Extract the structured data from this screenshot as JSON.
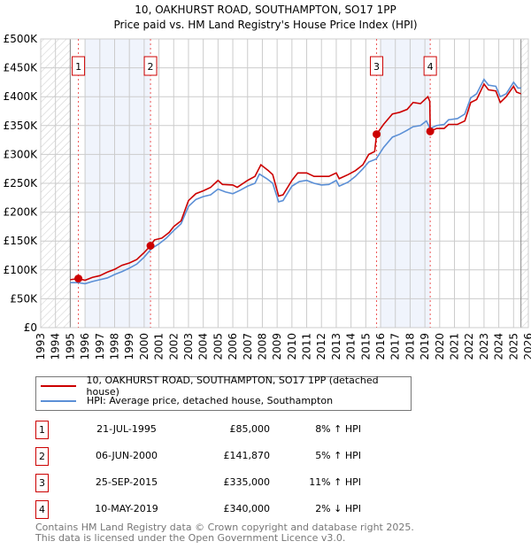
{
  "title": "10, OAKHURST ROAD, SOUTHAMPTON, SO17 1PP",
  "subtitle": "Price paid vs. HM Land Registry's House Price Index (HPI)",
  "chart_data": {
    "type": "line",
    "title": "10, OAKHURST ROAD, SOUTHAMPTON, SO17 1PP",
    "xlim": [
      1993,
      2026
    ],
    "ylim": [
      0,
      500000
    ],
    "x_ticks": [
      1993,
      1994,
      1995,
      1996,
      1997,
      1998,
      1999,
      2000,
      2001,
      2002,
      2003,
      2004,
      2005,
      2006,
      2007,
      2008,
      2009,
      2010,
      2011,
      2012,
      2013,
      2014,
      2015,
      2016,
      2017,
      2018,
      2019,
      2020,
      2021,
      2022,
      2023,
      2024,
      2025,
      2026
    ],
    "y_ticks": [
      0,
      50000,
      100000,
      150000,
      200000,
      250000,
      300000,
      350000,
      400000,
      450000,
      500000
    ],
    "y_tick_labels": [
      "£0",
      "£50K",
      "£100K",
      "£150K",
      "£200K",
      "£250K",
      "£300K",
      "£350K",
      "£400K",
      "£450K",
      "£500K"
    ],
    "grid": true,
    "legend_placement": "below",
    "hatched_ranges": [
      [
        1993,
        1995
      ],
      [
        2025.5,
        2026
      ]
    ],
    "shaded_ranges": [
      [
        1996,
        2000.43
      ],
      [
        2016,
        2019.35
      ]
    ],
    "series": [
      {
        "name": "10, OAKHURST ROAD, SOUTHAMPTON, SO17 1PP (detached house)",
        "color": "#cc0000",
        "x": [
          1995,
          1995.55,
          1996,
          1996.5,
          1997,
          1997.5,
          1998,
          1998.5,
          1999,
          1999.5,
          2000,
          2000.43,
          2000.7,
          2001.2,
          2001.7,
          2002,
          2002.5,
          2003,
          2003.5,
          2004,
          2004.5,
          2005,
          2005.3,
          2006,
          2006.3,
          2007,
          2007.5,
          2007.9,
          2008.4,
          2008.7,
          2009.1,
          2009.4,
          2010,
          2010.4,
          2011,
          2011.5,
          2012,
          2012.5,
          2013,
          2013.2,
          2013.8,
          2014.3,
          2014.8,
          2015.2,
          2015.6,
          2015.73,
          2016.2,
          2016.8,
          2017.3,
          2017.8,
          2018.2,
          2018.7,
          2019.2,
          2019.33,
          2019.36,
          2019.8,
          2020.3,
          2020.6,
          2021.2,
          2021.7,
          2022.1,
          2022.5,
          2023,
          2023.3,
          2023.8,
          2024.1,
          2024.5,
          2025,
          2025.2,
          2025.5
        ],
        "y": [
          83,
          85,
          82,
          87,
          90,
          96,
          101,
          108,
          112,
          118,
          130,
          141.9,
          152,
          155,
          165,
          175,
          185,
          220,
          232,
          237,
          243,
          255,
          248,
          247,
          243,
          255,
          262,
          282,
          272,
          265,
          228,
          230,
          255,
          268,
          268,
          262,
          262,
          262,
          268,
          258,
          265,
          272,
          282,
          300,
          305,
          335,
          352,
          370,
          373,
          378,
          390,
          388,
          400,
          392,
          340,
          345,
          345,
          352,
          352,
          358,
          390,
          395,
          422,
          412,
          410,
          390,
          400,
          418,
          408,
          405
        ],
        "y_unit": "thousand GBP"
      },
      {
        "name": "HPI: Average price, detached house, Southampton",
        "color": "#5b8fd6",
        "x": [
          1995,
          1995.5,
          1996,
          1996.5,
          1997,
          1997.5,
          1998,
          1998.5,
          1999,
          1999.5,
          2000,
          2000.5,
          2001,
          2001.5,
          2002,
          2002.5,
          2003,
          2003.5,
          2004,
          2004.5,
          2005,
          2005.5,
          2006,
          2006.5,
          2007,
          2007.5,
          2007.8,
          2008.3,
          2008.7,
          2009.1,
          2009.4,
          2010,
          2010.5,
          2011,
          2011.5,
          2012,
          2012.5,
          2013,
          2013.2,
          2013.8,
          2014.3,
          2014.8,
          2015.2,
          2015.7,
          2016.2,
          2016.8,
          2017.3,
          2017.8,
          2018.2,
          2018.7,
          2019.1,
          2019.35,
          2019.8,
          2020.3,
          2020.6,
          2021.2,
          2021.7,
          2022.1,
          2022.5,
          2023,
          2023.3,
          2023.8,
          2024.1,
          2024.5,
          2025,
          2025.3,
          2025.5
        ],
        "y": [
          78,
          78,
          76,
          80,
          83,
          86,
          92,
          97,
          103,
          110,
          122,
          137,
          145,
          155,
          168,
          180,
          210,
          222,
          227,
          230,
          240,
          235,
          232,
          238,
          245,
          250,
          266,
          258,
          250,
          218,
          220,
          245,
          253,
          255,
          250,
          247,
          248,
          255,
          245,
          252,
          262,
          275,
          287,
          292,
          312,
          330,
          335,
          342,
          348,
          350,
          358,
          345,
          350,
          352,
          360,
          362,
          370,
          398,
          405,
          430,
          420,
          418,
          400,
          405,
          425,
          415,
          415
        ],
        "y_unit": "thousand GBP"
      }
    ],
    "sales": [
      {
        "n": "1",
        "x": 1995.55,
        "y": 85000
      },
      {
        "n": "2",
        "x": 2000.43,
        "y": 141870
      },
      {
        "n": "3",
        "x": 2015.73,
        "y": 335000
      },
      {
        "n": "4",
        "x": 2019.36,
        "y": 340000
      }
    ]
  },
  "legend": [
    {
      "label": "10, OAKHURST ROAD, SOUTHAMPTON, SO17 1PP (detached house)",
      "color": "#cc0000"
    },
    {
      "label": "HPI: Average price, detached house, Southampton",
      "color": "#5b8fd6"
    }
  ],
  "table": [
    {
      "n": "1",
      "date": "21-JUL-1995",
      "price": "£85,000",
      "hpi": "8% ↑ HPI"
    },
    {
      "n": "2",
      "date": "06-JUN-2000",
      "price": "£141,870",
      "hpi": "5% ↑ HPI"
    },
    {
      "n": "3",
      "date": "25-SEP-2015",
      "price": "£335,000",
      "hpi": "11% ↑ HPI"
    },
    {
      "n": "4",
      "date": "10-MAY-2019",
      "price": "£340,000",
      "hpi": "2% ↓ HPI"
    }
  ],
  "footer": [
    "Contains HM Land Registry data © Crown copyright and database right 2025.",
    "This data is licensed under the Open Government Licence v3.0."
  ]
}
